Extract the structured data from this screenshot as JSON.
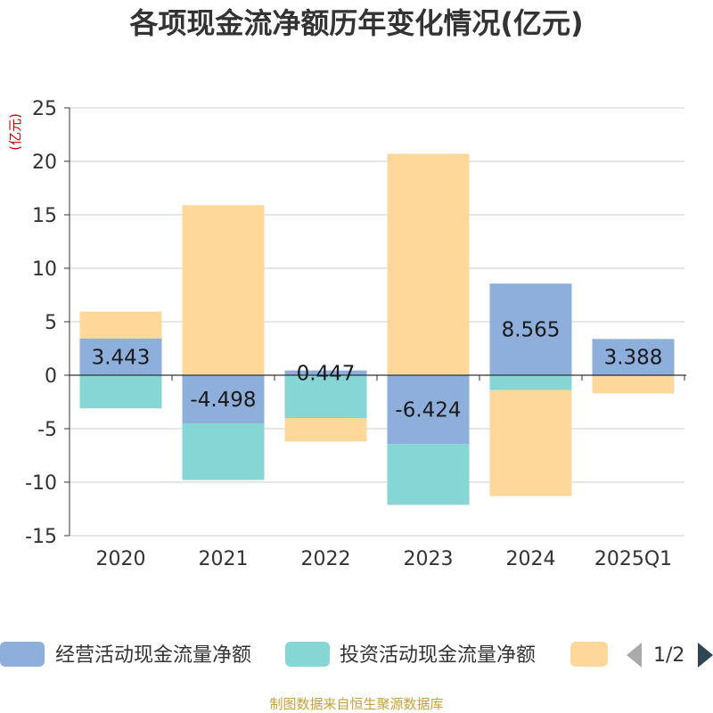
{
  "chart_data": {
    "type": "bar",
    "stacked": true,
    "title": "各项现金流净额历年变化情况(亿元)",
    "ylabel": "(亿元)",
    "ylim": [
      -15,
      25
    ],
    "yticks": [
      25,
      20,
      15,
      10,
      5,
      0,
      -5,
      -10,
      -15
    ],
    "categories": [
      "2020",
      "2021",
      "2022",
      "2023",
      "2024",
      "2025Q1"
    ],
    "series": [
      {
        "name": "经营活动现金流量净额",
        "color": "#8eaedb",
        "values": [
          3.443,
          -4.498,
          0.447,
          -6.424,
          8.565,
          3.388
        ]
      },
      {
        "name": "投资活动现金流量净额",
        "color": "#87d6d6",
        "values": [
          -3.1,
          -5.3,
          -4.0,
          -5.7,
          -1.4,
          -0.1
        ]
      },
      {
        "name": "",
        "color": "#fed89a",
        "values": [
          2.5,
          15.9,
          -2.2,
          20.7,
          -9.9,
          -1.6
        ]
      }
    ],
    "data_labels": [
      "3.443",
      "-4.498",
      "0.447",
      "-6.424",
      "8.565",
      "3.388"
    ],
    "legend_page": "1/2"
  },
  "footer": {
    "source": "制图数据来自恒生聚源数据库"
  },
  "colors": {
    "axis": "#333333",
    "grid": "#cccccc",
    "nav_inactive": "#aaaaaa",
    "nav_active": "#2f4554"
  }
}
